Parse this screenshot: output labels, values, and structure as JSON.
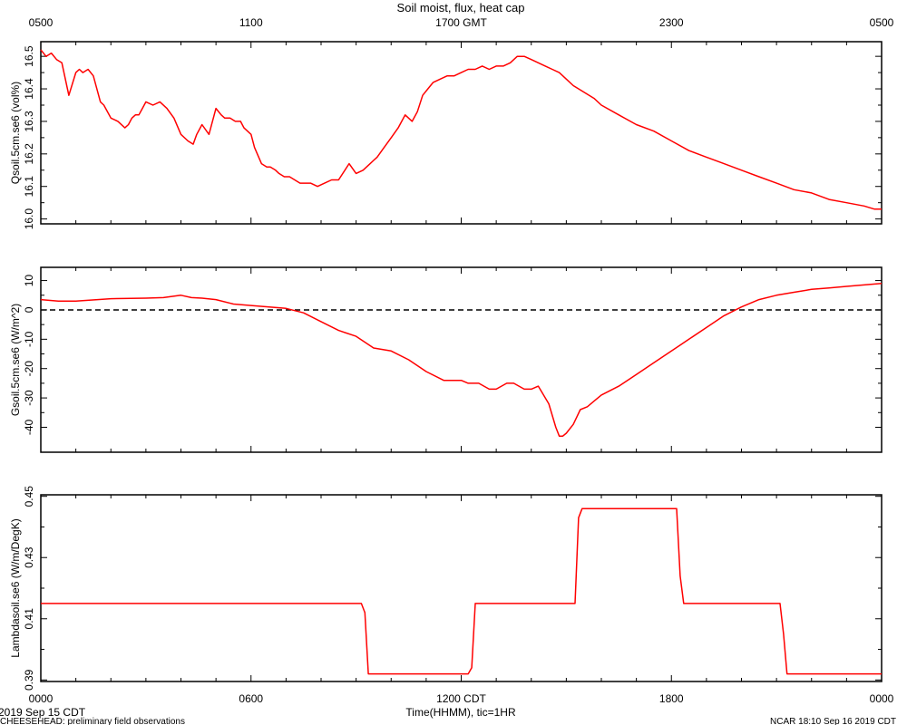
{
  "figure": {
    "title": "Soil moist, flux, heat cap",
    "footer_left_date": "2019 Sep 15 CDT",
    "footer_left_note": "CHEESEHEAD: preliminary field observations",
    "footer_right": "NCAR 18:10 Sep 16 2019 CDT",
    "x_axis_label": "Time(HHMM), tic=1HR",
    "series_color": "#ff0000",
    "top_ticks": [
      "0500",
      "1100",
      "1700 GMT",
      "2300",
      "0500"
    ],
    "bottom_ticks": [
      "0000",
      "0600",
      "1200 CDT",
      "1800",
      "0000"
    ]
  },
  "chart_data": [
    {
      "type": "line",
      "ylabel": "Qsoil.5cm.se6 (vol%)",
      "ylim": [
        15.985,
        16.545
      ],
      "yticks": [
        16.0,
        16.1,
        16.2,
        16.3,
        16.4,
        16.5
      ],
      "ytick_labels": [
        "16.0",
        "16.1",
        "16.2",
        "16.3",
        "16.4",
        "16.5"
      ],
      "xlim_hours": [
        0,
        24
      ],
      "zero_line": false,
      "x": [
        0,
        0.15,
        0.3,
        0.45,
        0.6,
        0.8,
        1.0,
        1.1,
        1.2,
        1.35,
        1.5,
        1.7,
        1.8,
        2.0,
        2.2,
        2.4,
        2.5,
        2.6,
        2.7,
        2.8,
        2.9,
        3.0,
        3.2,
        3.4,
        3.6,
        3.8,
        4.0,
        4.2,
        4.35,
        4.45,
        4.6,
        4.8,
        5.0,
        5.15,
        5.25,
        5.4,
        5.55,
        5.7,
        5.8,
        5.9,
        6.0,
        6.1,
        6.3,
        6.45,
        6.55,
        6.7,
        6.8,
        6.95,
        7.1,
        7.4,
        7.7,
        7.9,
        8.1,
        8.3,
        8.5,
        8.8,
        9.0,
        9.2,
        9.3,
        9.4,
        9.5,
        9.6,
        9.8,
        10.0,
        10.2,
        10.4,
        10.6,
        10.75,
        10.9,
        11.05,
        11.2,
        11.4,
        11.6,
        11.8,
        12.0,
        12.2,
        12.4,
        12.6,
        12.8,
        13.0,
        13.2,
        13.4,
        13.6,
        13.8,
        14.0,
        14.2,
        14.4,
        14.6,
        14.8,
        15.0,
        15.2,
        15.5,
        15.8,
        16.0,
        16.5,
        17.0,
        17.5,
        18.0,
        18.5,
        19.0,
        19.5,
        20.0,
        20.5,
        21.0,
        21.5,
        22.0,
        22.5,
        23.0,
        23.5,
        23.8,
        24.0
      ],
      "values": [
        16.52,
        16.5,
        16.51,
        16.49,
        16.48,
        16.38,
        16.45,
        16.46,
        16.45,
        16.46,
        16.44,
        16.36,
        16.35,
        16.31,
        16.3,
        16.28,
        16.29,
        16.31,
        16.32,
        16.32,
        16.34,
        16.36,
        16.35,
        16.36,
        16.34,
        16.31,
        16.26,
        16.24,
        16.23,
        16.26,
        16.29,
        16.26,
        16.34,
        16.32,
        16.31,
        16.31,
        16.3,
        16.3,
        16.28,
        16.27,
        16.26,
        16.22,
        16.17,
        16.16,
        16.16,
        16.15,
        16.14,
        16.13,
        16.13,
        16.11,
        16.11,
        16.1,
        16.11,
        16.12,
        16.12,
        16.17,
        16.14,
        16.15,
        16.16,
        16.17,
        16.18,
        16.19,
        16.22,
        16.25,
        16.28,
        16.32,
        16.3,
        16.33,
        16.38,
        16.4,
        16.42,
        16.43,
        16.44,
        16.44,
        16.45,
        16.46,
        16.46,
        16.47,
        16.46,
        16.47,
        16.47,
        16.48,
        16.5,
        16.5,
        16.49,
        16.48,
        16.47,
        16.46,
        16.45,
        16.43,
        16.41,
        16.39,
        16.37,
        16.35,
        16.32,
        16.29,
        16.27,
        16.24,
        16.21,
        16.19,
        16.17,
        16.15,
        16.13,
        16.11,
        16.09,
        16.08,
        16.06,
        16.05,
        16.04,
        16.03,
        16.03
      ]
    },
    {
      "type": "line",
      "ylabel": "Gsoil.5cm.se6 (W/m^2)",
      "ylim": [
        -48.5,
        14.5
      ],
      "yticks": [
        10,
        0,
        -10,
        -20,
        -30,
        -40
      ],
      "ytick_labels": [
        "10",
        "0",
        "-10",
        "-20",
        "-30",
        "-40"
      ],
      "xlim_hours": [
        0,
        24
      ],
      "zero_line": true,
      "x": [
        0,
        0.5,
        1.0,
        2.0,
        3.0,
        3.5,
        4.0,
        4.3,
        4.6,
        5.0,
        5.5,
        6.0,
        7.0,
        7.5,
        8.0,
        8.5,
        9.0,
        9.5,
        10.0,
        10.5,
        11.0,
        11.5,
        12.0,
        12.2,
        12.5,
        12.8,
        13.0,
        13.3,
        13.5,
        13.8,
        14.0,
        14.2,
        14.5,
        14.7,
        14.8,
        14.9,
        15.0,
        15.2,
        15.4,
        15.6,
        15.8,
        16.0,
        16.5,
        17.0,
        17.5,
        18.0,
        18.5,
        19.0,
        19.5,
        20.0,
        20.5,
        21.0,
        21.5,
        22.0,
        22.5,
        23.0,
        23.5,
        24.0
      ],
      "values": [
        3.5,
        3,
        3,
        3.8,
        4,
        4.2,
        5,
        4.2,
        4,
        3.5,
        2,
        1.5,
        0.5,
        -1,
        -4,
        -7,
        -9,
        -13,
        -14,
        -17,
        -21,
        -24,
        -24,
        -25,
        -25,
        -27,
        -27,
        -25,
        -25,
        -27,
        -27,
        -26,
        -32,
        -40,
        -43,
        -43,
        -42,
        -39,
        -34,
        -33,
        -31,
        -29,
        -26,
        -22,
        -18,
        -14,
        -10,
        -6,
        -2,
        1,
        3.5,
        5,
        6,
        7,
        7.5,
        8,
        8.5,
        9
      ]
    },
    {
      "type": "line",
      "ylabel": "Lambdasoil.se6 (W/m/DegK)",
      "ylim": [
        0.3895,
        0.4505
      ],
      "yticks": [
        0.39,
        0.41,
        0.43,
        0.45
      ],
      "ytick_labels": [
        "0.39",
        "0.41",
        "0.43",
        "0.45"
      ],
      "xlim_hours": [
        0,
        24
      ],
      "zero_line": false,
      "x": [
        0,
        9.15,
        9.25,
        9.35,
        12.2,
        12.3,
        12.4,
        15.25,
        15.35,
        15.45,
        18.15,
        18.25,
        18.35,
        21.1,
        21.2,
        21.3,
        24.0
      ],
      "values": [
        0.415,
        0.415,
        0.412,
        0.392,
        0.392,
        0.394,
        0.415,
        0.415,
        0.443,
        0.446,
        0.446,
        0.424,
        0.415,
        0.415,
        0.405,
        0.392,
        0.392
      ]
    }
  ]
}
